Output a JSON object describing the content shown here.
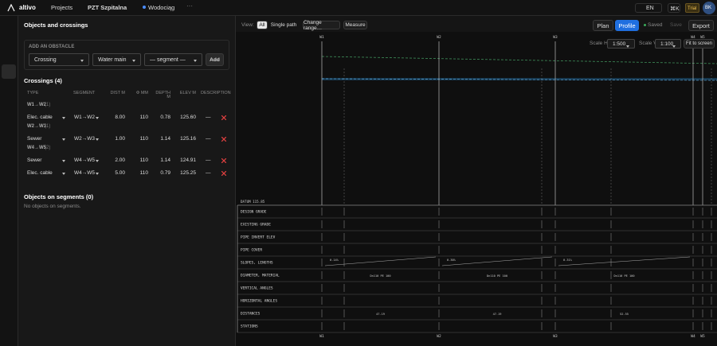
{
  "header": {
    "logo": "altivo",
    "nav": "Projects",
    "project": "PZT Szpitalna",
    "network": "Wodociąg",
    "language": "EN",
    "shortcut": "⌘K",
    "plan_badge": "Trial",
    "avatar": "BK"
  },
  "panel": {
    "title": "Objects and crossings",
    "add_title": "ADD AN OBSTACLE",
    "add_type": "Crossing",
    "add_network": "Water main",
    "add_segment": "— segment —",
    "add_button": "Add",
    "crossings_title": "Crossings (4)",
    "columns": [
      "TYPE",
      "SEGMENT",
      "DIST M",
      "Φ MM",
      "DEPTH",
      "ELEV M",
      "DESCRIPTION"
    ],
    "columns_unit": "M",
    "groups": [
      {
        "name": "W1→W2",
        "count": "(1)",
        "rows": [
          {
            "type": "Elec. cable",
            "segment": "W1→W2",
            "dist": "8.00",
            "diameter": "110",
            "depth": "0.78",
            "elev": "125.60",
            "description": "—"
          }
        ]
      },
      {
        "name": "W2→W3",
        "count": "(1)",
        "rows": [
          {
            "type": "Sewer",
            "segment": "W2→W3",
            "dist": "1.00",
            "diameter": "110",
            "depth": "1.14",
            "elev": "125.16",
            "description": "—"
          }
        ]
      },
      {
        "name": "W4→W5",
        "count": "(2)",
        "rows": [
          {
            "type": "Sewer",
            "segment": "W4→W5",
            "dist": "2.00",
            "diameter": "110",
            "depth": "1.14",
            "elev": "124.91",
            "description": "—"
          },
          {
            "type": "Elec. cable",
            "segment": "W4→W5",
            "dist": "5.00",
            "diameter": "110",
            "depth": "0.79",
            "elev": "125.25",
            "description": "—"
          }
        ]
      }
    ],
    "objects_title": "Objects on segments (0)",
    "objects_empty": "No objects on segments."
  },
  "toolbar": {
    "view_label": "View:",
    "view_options": [
      "All",
      "Single path"
    ],
    "change_range": "Change range…",
    "measure": "Measure",
    "modes": [
      "Plan",
      "Profile"
    ],
    "status": "Saved",
    "save": "Save",
    "export": "Export",
    "scale_h_label": "Scale H",
    "scale_h": "1:500",
    "scale_v_label": "Scale V",
    "scale_v": "1:100",
    "fit": "Fit to screen"
  },
  "profile": {
    "wells": [
      "W1",
      "W2",
      "W3",
      "W4",
      "W5"
    ],
    "datum": "DATUM 115.85",
    "rows": [
      "DESIGN GRADE",
      "EXISTING GRADE",
      "PIPE INVERT ELEV",
      "PIPE COVER",
      "SLOPES, LENGTHS",
      "DIAMETER, MATERIAL",
      "VERTICAL ANGLES",
      "HORIZONTAL ANGLES",
      "DISTANCES",
      "STATIONS"
    ],
    "slopes": [
      "0.14%",
      "0.30%",
      "0.31%"
    ],
    "materials": [
      "Dn110 PE 100",
      "Dn110 PE 100",
      "Dn110 PE 100"
    ],
    "distances": [
      "47.19",
      "47.19",
      "52.55"
    ]
  }
}
